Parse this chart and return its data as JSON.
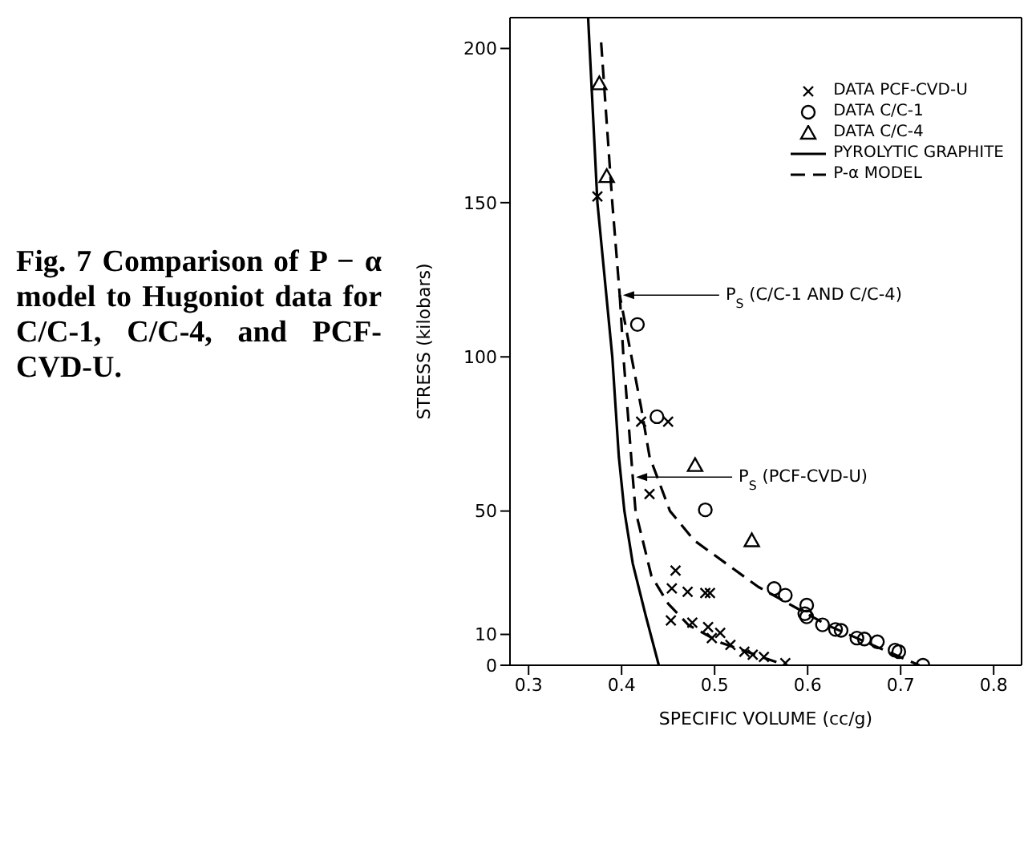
{
  "chart_data": {
    "type": "scatter",
    "title": "Fig. 7 Comparison of P − α model to Hugoniot data for C/C-1, C/C-4, and PCF-CVD-U.",
    "xlabel": "SPECIFIC VOLUME (cc/g)",
    "ylabel": "STRESS (kilobars)",
    "xlim": [
      0.28,
      0.83
    ],
    "xticks": [
      0.3,
      0.4,
      0.5,
      0.6,
      0.7,
      0.8
    ],
    "ylim": [
      0,
      210
    ],
    "yticks": [
      0,
      10,
      50,
      100,
      150,
      200
    ],
    "grid": false,
    "legend": "top right",
    "series": [
      {
        "name": "DATA PCF-CVD-U",
        "marker": "cross",
        "color": "#000000",
        "x": [
          0.374,
          0.421,
          0.45,
          0.43,
          0.458,
          0.454,
          0.471,
          0.49,
          0.495,
          0.453,
          0.476,
          0.493,
          0.506,
          0.497,
          0.517,
          0.532,
          0.541,
          0.553,
          0.576
        ],
        "values": [
          152,
          79,
          79,
          55.5,
          30.7,
          24.9,
          23.8,
          23.4,
          23.4,
          14.5,
          13.8,
          12.4,
          10.5,
          8.8,
          6.6,
          4.4,
          3.4,
          2.7,
          0.7
        ]
      },
      {
        "name": "DATA C/C-1",
        "marker": "circle",
        "color": "#000000",
        "x": [
          0.417,
          0.438,
          0.49,
          0.564,
          0.576,
          0.599,
          0.597,
          0.599,
          0.616,
          0.63,
          0.636,
          0.653,
          0.661,
          0.675,
          0.694,
          0.698,
          0.724
        ],
        "values": [
          110.5,
          80.6,
          50.4,
          24.9,
          22.7,
          19.5,
          16.7,
          15.7,
          13.1,
          11.6,
          11.3,
          8.8,
          8.5,
          7.6,
          4.9,
          4.4,
          0
        ]
      },
      {
        "name": "DATA C/C-4",
        "marker": "triangle",
        "color": "#000000",
        "x": [
          0.376,
          0.384,
          0.479,
          0.54
        ],
        "values": [
          188.6,
          158.5,
          64.8,
          40.4
        ]
      },
      {
        "name": "PYROLYTIC GRAPHITE",
        "type": "line",
        "marker": "none",
        "line_style": "solid",
        "color": "#000000",
        "x": [
          0.364,
          0.374,
          0.39,
          0.397,
          0.403,
          0.412,
          0.426,
          0.44
        ],
        "values": [
          210,
          150,
          100,
          67.7,
          50,
          33,
          16,
          0
        ]
      },
      {
        "name": "P-α MODEL",
        "type": "line",
        "marker": "none",
        "line_style": "dashed",
        "color": "#000000",
        "x": [
          0.378,
          0.39,
          0.398,
          0.421,
          0.43,
          0.452,
          0.478,
          0.547,
          0.622,
          0.674,
          0.72
        ],
        "values": [
          202,
          150,
          120,
          83.6,
          67.7,
          50,
          40.5,
          25.4,
          12.9,
          6,
          0
        ]
      },
      {
        "type": "line",
        "marker": "none",
        "line_style": "dashed",
        "color": "#000000",
        "x": [
          0.398,
          0.402,
          0.412,
          0.415,
          0.432,
          0.45,
          0.472,
          0.507,
          0.576
        ],
        "values": [
          120,
          100,
          61,
          50,
          29,
          20,
          13,
          7.3,
          0
        ]
      }
    ],
    "annotations": [
      {
        "text": "P$_{S}$ (C/C-1 AND C/C-4)",
        "x": 0.398,
        "y": 120
      },
      {
        "text": "P$_{S}$ (PCF-CVD-U)",
        "x": 0.412,
        "y": 61
      }
    ]
  }
}
